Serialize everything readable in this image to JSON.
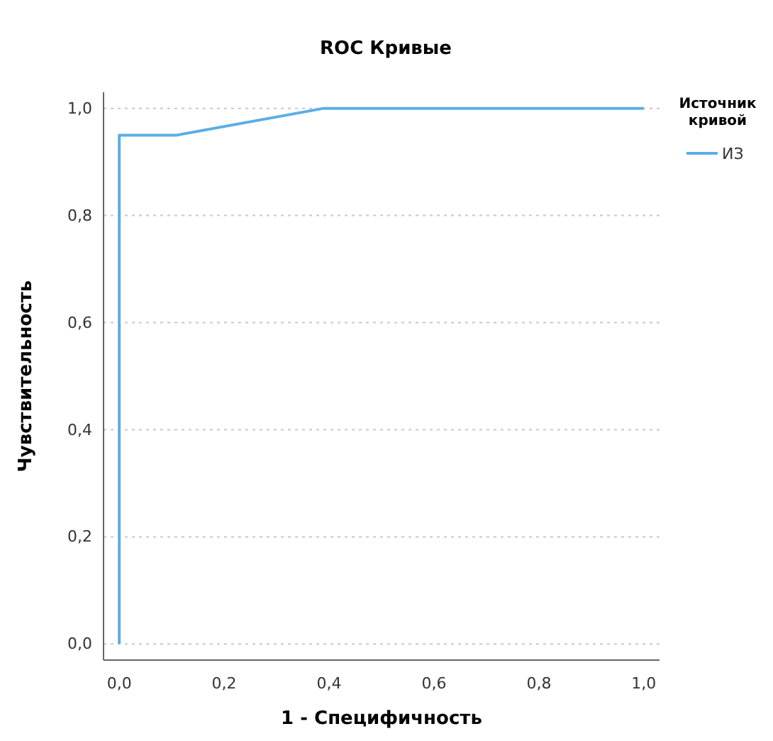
{
  "chart_data": {
    "type": "line",
    "title": "ROC Кривые",
    "xlabel": "1 - Специфичность",
    "ylabel": "Чувствительность",
    "legend_title": "Источник кривой",
    "series": [
      {
        "name": "ИЗ",
        "color": "#5aaee6",
        "x": [
          0,
          0,
          0.11,
          0.39,
          1
        ],
        "values": [
          0,
          0.95,
          0.95,
          1,
          1
        ]
      }
    ],
    "xlim": [
      -0.03,
      1.03
    ],
    "ylim": [
      -0.03,
      1.03
    ],
    "xticks": [
      {
        "value": 0,
        "label": "0,0"
      },
      {
        "value": 0.2,
        "label": "0,2"
      },
      {
        "value": 0.4,
        "label": "0,4"
      },
      {
        "value": 0.6,
        "label": "0,6"
      },
      {
        "value": 0.8,
        "label": "0,8"
      },
      {
        "value": 1,
        "label": "1,0"
      }
    ],
    "yticks": [
      {
        "value": 0,
        "label": "0,0"
      },
      {
        "value": 0.2,
        "label": "0,2"
      },
      {
        "value": 0.4,
        "label": "0,4"
      },
      {
        "value": 0.6,
        "label": "0,6"
      },
      {
        "value": 0.8,
        "label": "0,8"
      },
      {
        "value": 1,
        "label": "1,0"
      }
    ],
    "grid": "y",
    "legend": "top right",
    "marker": "none",
    "line_style": "solid"
  }
}
